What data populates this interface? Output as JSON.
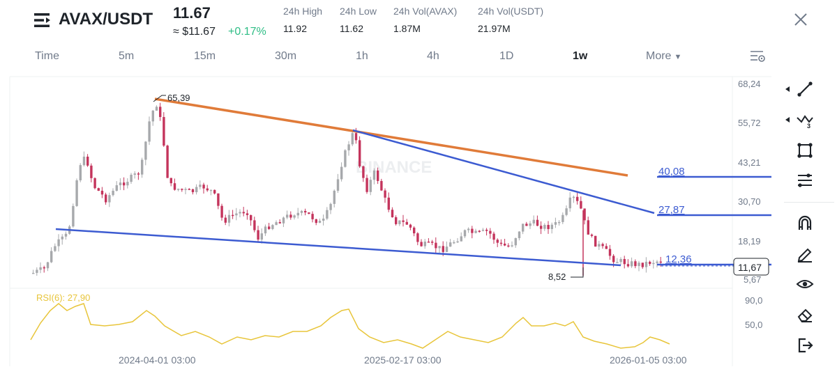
{
  "header": {
    "pair": "AVAX/USDT",
    "price": "11.67",
    "price_usd": "≈ $11.67",
    "change": "+0.17%",
    "stats": [
      {
        "label": "24h High",
        "value": "11.92"
      },
      {
        "label": "24h Low",
        "value": "11.62"
      },
      {
        "label": "24h Vol(AVAX)",
        "value": "1.87M"
      },
      {
        "label": "24h Vol(USDT)",
        "value": "21.97M"
      }
    ]
  },
  "tabs": [
    {
      "label": "Time",
      "active": false
    },
    {
      "label": "5m",
      "active": false
    },
    {
      "label": "15m",
      "active": false
    },
    {
      "label": "30m",
      "active": false
    },
    {
      "label": "1h",
      "active": false
    },
    {
      "label": "4h",
      "active": false
    },
    {
      "label": "1D",
      "active": false
    },
    {
      "label": "1w",
      "active": true
    },
    {
      "label": "More",
      "active": false
    }
  ],
  "chart": {
    "watermark": "BINANCE",
    "price_axis": [
      "68,24",
      "55,72",
      "43,21",
      "30,70",
      "18,19",
      "5,67"
    ],
    "current_price_label": "11,67",
    "peak_label": "65,39",
    "low_label": "8,52",
    "level_labels": [
      "40,08",
      "27,87",
      "12,36"
    ],
    "rsi_label": "RSI(6): 27,90",
    "rsi_axis": [
      "90,0",
      "50,0"
    ],
    "time_axis": [
      "2024-04-01 03:00",
      "2025-02-17 03:00",
      "2026-01-05 03:00"
    ],
    "colors": {
      "up": "#a7a9ac",
      "down": "#c4345c",
      "trend_orange": "#e07b39",
      "trend_blue": "#3c5bd1",
      "rsi": "#e8c53a",
      "level_text": "#3c5bd1"
    }
  },
  "toolbar": {
    "icons": [
      "trend-line-icon",
      "multi-line-icon",
      "rectangle-icon",
      "fib-lines-icon",
      "magnet-icon",
      "pencil-icon",
      "eye-icon",
      "eraser-icon",
      "exit-icon"
    ]
  }
}
